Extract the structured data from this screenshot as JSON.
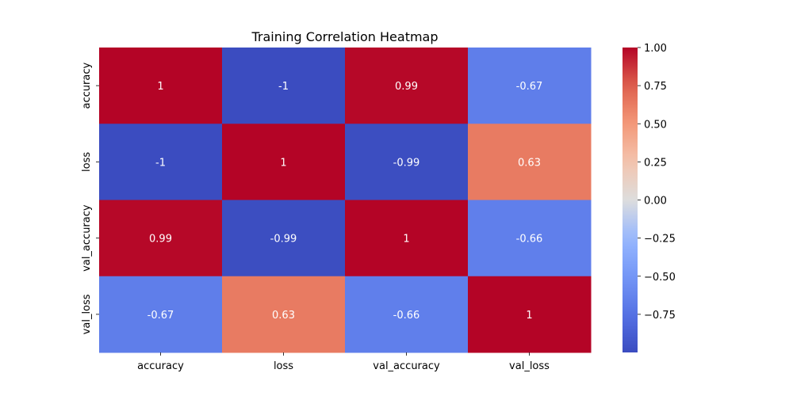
{
  "chart_data": {
    "type": "heatmap",
    "title": "Training Correlation Heatmap",
    "xlabel": "",
    "ylabel": "",
    "x_categories": [
      "accuracy",
      "loss",
      "val_accuracy",
      "val_loss"
    ],
    "y_categories": [
      "accuracy",
      "loss",
      "val_accuracy",
      "val_loss"
    ],
    "values": [
      [
        1,
        -1,
        0.99,
        -0.67
      ],
      [
        -1,
        1,
        -0.99,
        0.63
      ],
      [
        0.99,
        -0.99,
        1,
        -0.66
      ],
      [
        -0.67,
        0.63,
        -0.66,
        1
      ]
    ],
    "cell_labels": [
      [
        "1",
        "-1",
        "0.99",
        "-0.67"
      ],
      [
        "-1",
        "1",
        "-0.99",
        "0.63"
      ],
      [
        "0.99",
        "-0.99",
        "1",
        "-0.66"
      ],
      [
        "-0.67",
        "0.63",
        "-0.66",
        "1"
      ]
    ],
    "colormap": "coolwarm",
    "colorbar": {
      "range": [
        -1,
        1
      ],
      "ticks": [
        1.0,
        0.75,
        0.5,
        0.25,
        0.0,
        -0.25,
        -0.5,
        -0.75
      ],
      "tick_labels": [
        "1.00",
        "0.75",
        "0.50",
        "0.25",
        "0.00",
        "−0.25",
        "−0.50",
        "−0.75"
      ]
    },
    "annotation_color": "#ffffff",
    "grid": false
  }
}
